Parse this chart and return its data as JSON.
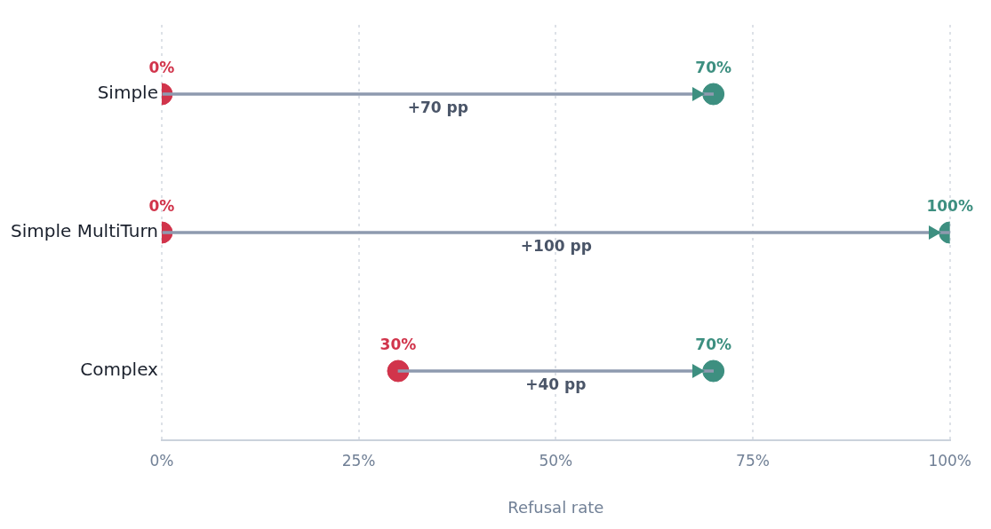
{
  "chart_data": {
    "type": "bar",
    "orientation": "horizontal",
    "categories": [
      "Simple",
      "Simple MultiTurn",
      "Complex"
    ],
    "xlabel": "Refusal rate",
    "xlim": [
      0,
      100
    ],
    "xticks": [
      {
        "value": 0,
        "label": "0%"
      },
      {
        "value": 25,
        "label": "25%"
      },
      {
        "value": 50,
        "label": "50%"
      },
      {
        "value": 75,
        "label": "75%"
      },
      {
        "value": 100,
        "label": "100%"
      }
    ],
    "grid": "x",
    "marker": "circle",
    "series": [
      {
        "color": "#8e9aaf",
        "base": [
          0,
          0,
          30
        ],
        "values": [
          70,
          100,
          40
        ],
        "value_labels": [
          "+70 pp",
          "+100 pp",
          "+40 pp"
        ]
      },
      {
        "type": "scatter",
        "color": "#d1344b",
        "values": [
          0,
          0,
          30
        ],
        "value_labels": [
          "0%",
          "0%",
          "30%"
        ]
      },
      {
        "type": "scatter",
        "color": "#3d8f80",
        "values": [
          70,
          100,
          70
        ],
        "value_labels": [
          "70%",
          "100%",
          "70%"
        ]
      }
    ]
  }
}
